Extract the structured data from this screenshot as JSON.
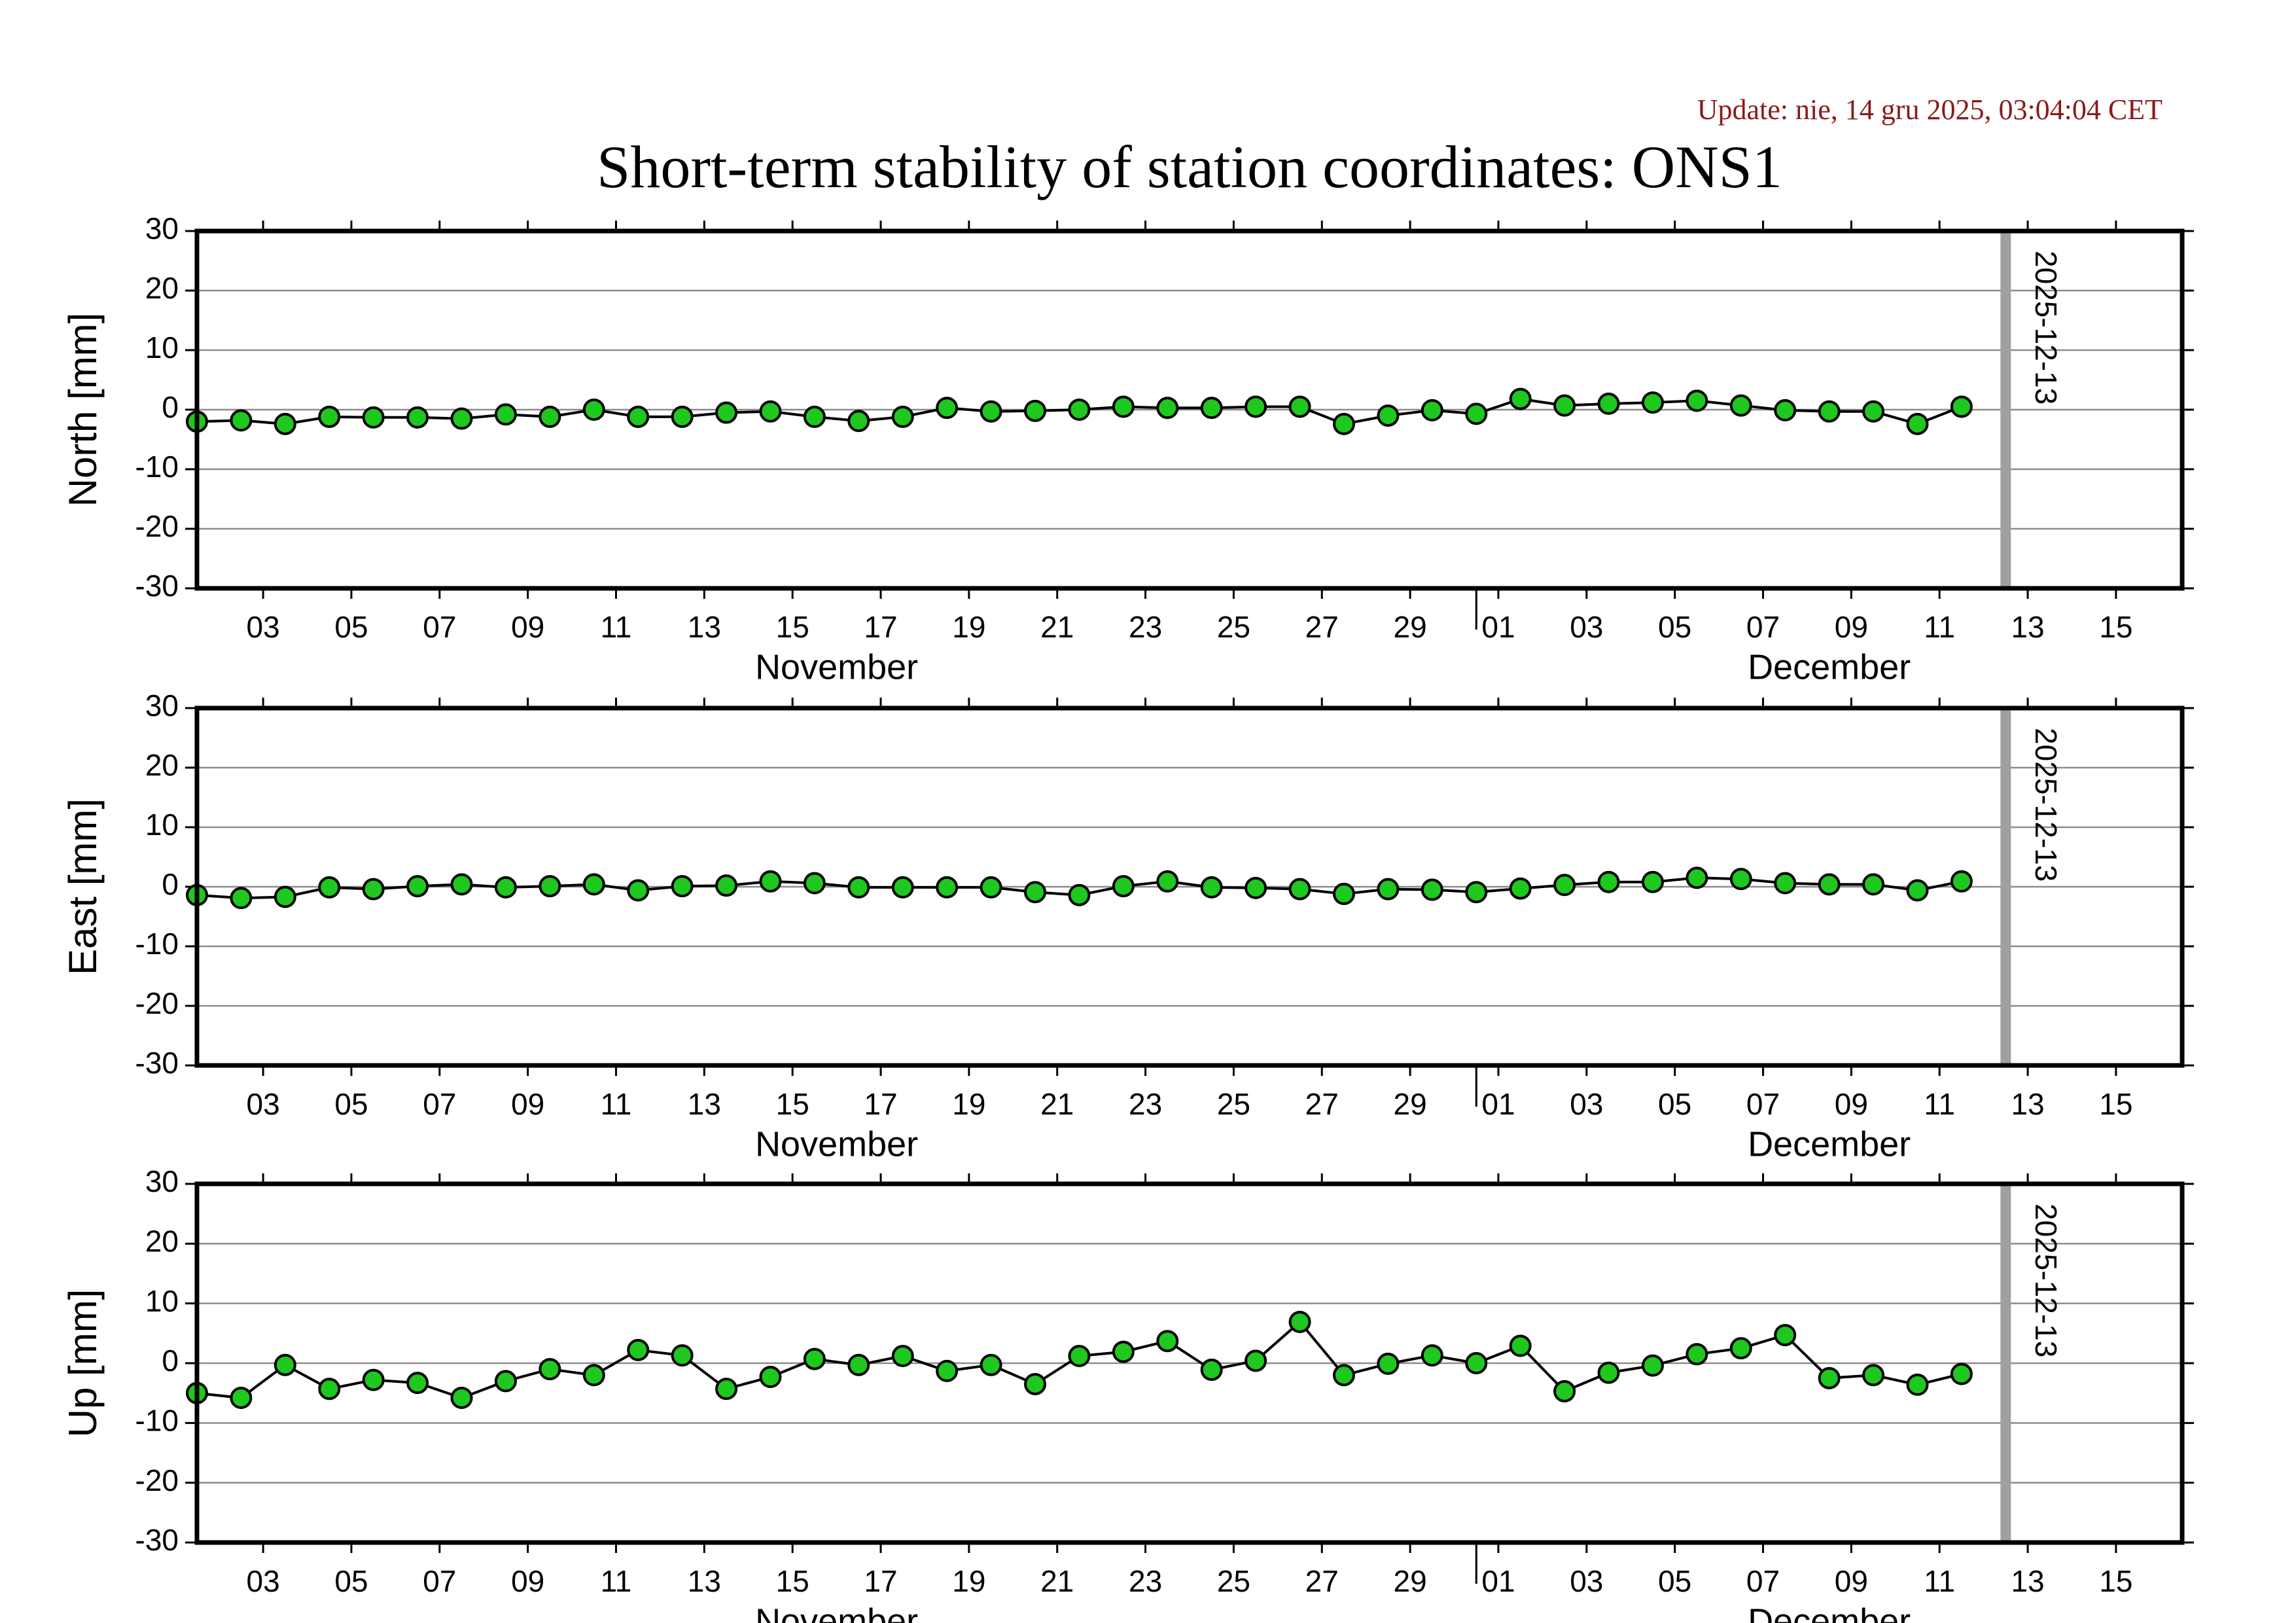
{
  "header": {
    "title": "Short-term stability of station coordinates: ONS1",
    "update": "Update: nie, 14 gru 2025, 03:04:04 CET"
  },
  "chart_data": [
    {
      "type": "line",
      "ylabel": "North [mm]",
      "color": "#1ec81e",
      "line_color": "#000000",
      "x": [
        "2025-11-02",
        "2025-11-03",
        "2025-11-04",
        "2025-11-05",
        "2025-11-06",
        "2025-11-07",
        "2025-11-08",
        "2025-11-09",
        "2025-11-10",
        "2025-11-11",
        "2025-11-12",
        "2025-11-13",
        "2025-11-14",
        "2025-11-15",
        "2025-11-16",
        "2025-11-17",
        "2025-11-18",
        "2025-11-19",
        "2025-11-20",
        "2025-11-21",
        "2025-11-22",
        "2025-11-23",
        "2025-11-24",
        "2025-11-25",
        "2025-11-26",
        "2025-11-27",
        "2025-11-28",
        "2025-11-29",
        "2025-11-30",
        "2025-12-01",
        "2025-12-02",
        "2025-12-03",
        "2025-12-04",
        "2025-12-05",
        "2025-12-06",
        "2025-12-07",
        "2025-12-08",
        "2025-12-09",
        "2025-12-10",
        "2025-12-11",
        "2025-12-12"
      ],
      "values": [
        -2,
        -1.8,
        -2.4,
        -1.2,
        -1.3,
        -1.3,
        -1.5,
        -0.8,
        -1.2,
        0,
        -1.2,
        -1.2,
        -0.5,
        -0.3,
        -1.2,
        -1.9,
        -1.2,
        0.3,
        -0.3,
        -0.2,
        0,
        0.5,
        0.3,
        0.3,
        0.5,
        0.5,
        -2.4,
        -1,
        -0.1,
        -0.7,
        1.8,
        0.7,
        1,
        1.2,
        1.5,
        0.7,
        -0.1,
        -0.3,
        -0.3,
        -2.4,
        0.5
      ],
      "xlim": [
        "2025-11-02",
        "2025-12-17"
      ],
      "xticks": [
        {
          "value": "2025-11-03",
          "label": "03"
        },
        {
          "value": "2025-11-05",
          "label": "05"
        },
        {
          "value": "2025-11-07",
          "label": "07"
        },
        {
          "value": "2025-11-09",
          "label": "09"
        },
        {
          "value": "2025-11-11",
          "label": "11"
        },
        {
          "value": "2025-11-13",
          "label": "13"
        },
        {
          "value": "2025-11-15",
          "label": "15"
        },
        {
          "value": "2025-11-17",
          "label": "17"
        },
        {
          "value": "2025-11-19",
          "label": "19"
        },
        {
          "value": "2025-11-21",
          "label": "21"
        },
        {
          "value": "2025-11-23",
          "label": "23"
        },
        {
          "value": "2025-11-25",
          "label": "25"
        },
        {
          "value": "2025-11-27",
          "label": "27"
        },
        {
          "value": "2025-11-29",
          "label": "29"
        },
        {
          "value": "2025-12-01",
          "label": "01"
        },
        {
          "value": "2025-12-03",
          "label": "03"
        },
        {
          "value": "2025-12-05",
          "label": "05"
        },
        {
          "value": "2025-12-07",
          "label": "07"
        },
        {
          "value": "2025-12-09",
          "label": "09"
        },
        {
          "value": "2025-12-11",
          "label": "11"
        },
        {
          "value": "2025-12-13",
          "label": "13"
        },
        {
          "value": "2025-12-15",
          "label": "15"
        }
      ],
      "months": [
        {
          "value": "2025-11",
          "label": "November"
        },
        {
          "value": "2025-12",
          "label": "December"
        }
      ],
      "ylim": [
        -30,
        30
      ],
      "yticks": [
        -30,
        -20,
        -10,
        0,
        10,
        20,
        30
      ],
      "grid": true,
      "marker_line": "2025-12-13"
    },
    {
      "type": "line",
      "ylabel": "East [mm]",
      "color": "#1ec81e",
      "line_color": "#000000",
      "x": [
        "2025-11-02",
        "2025-11-03",
        "2025-11-04",
        "2025-11-05",
        "2025-11-06",
        "2025-11-07",
        "2025-11-08",
        "2025-11-09",
        "2025-11-10",
        "2025-11-11",
        "2025-11-12",
        "2025-11-13",
        "2025-11-14",
        "2025-11-15",
        "2025-11-16",
        "2025-11-17",
        "2025-11-18",
        "2025-11-19",
        "2025-11-20",
        "2025-11-21",
        "2025-11-22",
        "2025-11-23",
        "2025-11-24",
        "2025-11-25",
        "2025-11-26",
        "2025-11-27",
        "2025-11-28",
        "2025-11-29",
        "2025-11-30",
        "2025-12-01",
        "2025-12-02",
        "2025-12-03",
        "2025-12-04",
        "2025-12-05",
        "2025-12-06",
        "2025-12-07",
        "2025-12-08",
        "2025-12-09",
        "2025-12-10",
        "2025-12-11",
        "2025-12-12"
      ],
      "values": [
        -1.4,
        -1.9,
        -1.7,
        -0.1,
        -0.4,
        0.1,
        0.4,
        -0.1,
        0.1,
        0.4,
        -0.6,
        0.1,
        0.2,
        0.9,
        0.6,
        -0.1,
        -0.1,
        -0.1,
        -0.1,
        -0.9,
        -1.4,
        0.1,
        0.9,
        -0.1,
        -0.2,
        -0.4,
        -1.2,
        -0.4,
        -0.5,
        -0.9,
        -0.3,
        0.3,
        0.8,
        0.8,
        1.5,
        1.3,
        0.6,
        0.4,
        0.4,
        -0.6,
        0.9
      ],
      "xlim": [
        "2025-11-02",
        "2025-12-17"
      ],
      "xticks": [
        {
          "value": "2025-11-03",
          "label": "03"
        },
        {
          "value": "2025-11-05",
          "label": "05"
        },
        {
          "value": "2025-11-07",
          "label": "07"
        },
        {
          "value": "2025-11-09",
          "label": "09"
        },
        {
          "value": "2025-11-11",
          "label": "11"
        },
        {
          "value": "2025-11-13",
          "label": "13"
        },
        {
          "value": "2025-11-15",
          "label": "15"
        },
        {
          "value": "2025-11-17",
          "label": "17"
        },
        {
          "value": "2025-11-19",
          "label": "19"
        },
        {
          "value": "2025-11-21",
          "label": "21"
        },
        {
          "value": "2025-11-23",
          "label": "23"
        },
        {
          "value": "2025-11-25",
          "label": "25"
        },
        {
          "value": "2025-11-27",
          "label": "27"
        },
        {
          "value": "2025-11-29",
          "label": "29"
        },
        {
          "value": "2025-12-01",
          "label": "01"
        },
        {
          "value": "2025-12-03",
          "label": "03"
        },
        {
          "value": "2025-12-05",
          "label": "05"
        },
        {
          "value": "2025-12-07",
          "label": "07"
        },
        {
          "value": "2025-12-09",
          "label": "09"
        },
        {
          "value": "2025-12-11",
          "label": "11"
        },
        {
          "value": "2025-12-13",
          "label": "13"
        },
        {
          "value": "2025-12-15",
          "label": "15"
        }
      ],
      "months": [
        {
          "value": "2025-11",
          "label": "November"
        },
        {
          "value": "2025-12",
          "label": "December"
        }
      ],
      "ylim": [
        -30,
        30
      ],
      "yticks": [
        -30,
        -20,
        -10,
        0,
        10,
        20,
        30
      ],
      "grid": true,
      "marker_line": "2025-12-13"
    },
    {
      "type": "line",
      "ylabel": "Up [mm]",
      "color": "#1ec81e",
      "line_color": "#000000",
      "x": [
        "2025-11-02",
        "2025-11-03",
        "2025-11-04",
        "2025-11-05",
        "2025-11-06",
        "2025-11-07",
        "2025-11-08",
        "2025-11-09",
        "2025-11-10",
        "2025-11-11",
        "2025-11-12",
        "2025-11-13",
        "2025-11-14",
        "2025-11-15",
        "2025-11-16",
        "2025-11-17",
        "2025-11-18",
        "2025-11-19",
        "2025-11-20",
        "2025-11-21",
        "2025-11-22",
        "2025-11-23",
        "2025-11-24",
        "2025-11-25",
        "2025-11-26",
        "2025-11-27",
        "2025-11-28",
        "2025-11-29",
        "2025-11-30",
        "2025-12-01",
        "2025-12-02",
        "2025-12-03",
        "2025-12-04",
        "2025-12-05",
        "2025-12-06",
        "2025-12-07",
        "2025-12-08",
        "2025-12-09",
        "2025-12-10",
        "2025-12-11",
        "2025-12-12"
      ],
      "values": [
        -5,
        -5.8,
        -0.3,
        -4.3,
        -2.8,
        -3.3,
        -5.8,
        -3,
        -1,
        -2,
        2.2,
        1.3,
        -4.3,
        -2.3,
        0.7,
        -0.3,
        1.2,
        -1.3,
        -0.3,
        -3.5,
        1.2,
        1.9,
        3.7,
        -1.1,
        0.4,
        6.9,
        -2,
        -0.1,
        1.3,
        0,
        2.9,
        -4.7,
        -1.6,
        -0.4,
        1.5,
        2.5,
        4.7,
        -2.5,
        -2,
        -3.6,
        -1.8
      ],
      "xlim": [
        "2025-11-02",
        "2025-12-17"
      ],
      "xticks": [
        {
          "value": "2025-11-03",
          "label": "03"
        },
        {
          "value": "2025-11-05",
          "label": "05"
        },
        {
          "value": "2025-11-07",
          "label": "07"
        },
        {
          "value": "2025-11-09",
          "label": "09"
        },
        {
          "value": "2025-11-11",
          "label": "11"
        },
        {
          "value": "2025-11-13",
          "label": "13"
        },
        {
          "value": "2025-11-15",
          "label": "15"
        },
        {
          "value": "2025-11-17",
          "label": "17"
        },
        {
          "value": "2025-11-19",
          "label": "19"
        },
        {
          "value": "2025-11-21",
          "label": "21"
        },
        {
          "value": "2025-11-23",
          "label": "23"
        },
        {
          "value": "2025-11-25",
          "label": "25"
        },
        {
          "value": "2025-11-27",
          "label": "27"
        },
        {
          "value": "2025-11-29",
          "label": "29"
        },
        {
          "value": "2025-12-01",
          "label": "01"
        },
        {
          "value": "2025-12-03",
          "label": "03"
        },
        {
          "value": "2025-12-05",
          "label": "05"
        },
        {
          "value": "2025-12-07",
          "label": "07"
        },
        {
          "value": "2025-12-09",
          "label": "09"
        },
        {
          "value": "2025-12-11",
          "label": "11"
        },
        {
          "value": "2025-12-13",
          "label": "13"
        },
        {
          "value": "2025-12-15",
          "label": "15"
        }
      ],
      "months": [
        {
          "value": "2025-11",
          "label": "November"
        },
        {
          "value": "2025-12",
          "label": "December"
        }
      ],
      "ylim": [
        -30,
        30
      ],
      "yticks": [
        -30,
        -20,
        -10,
        0,
        10,
        20,
        30
      ],
      "grid": true,
      "marker_line": "2025-12-13"
    }
  ]
}
